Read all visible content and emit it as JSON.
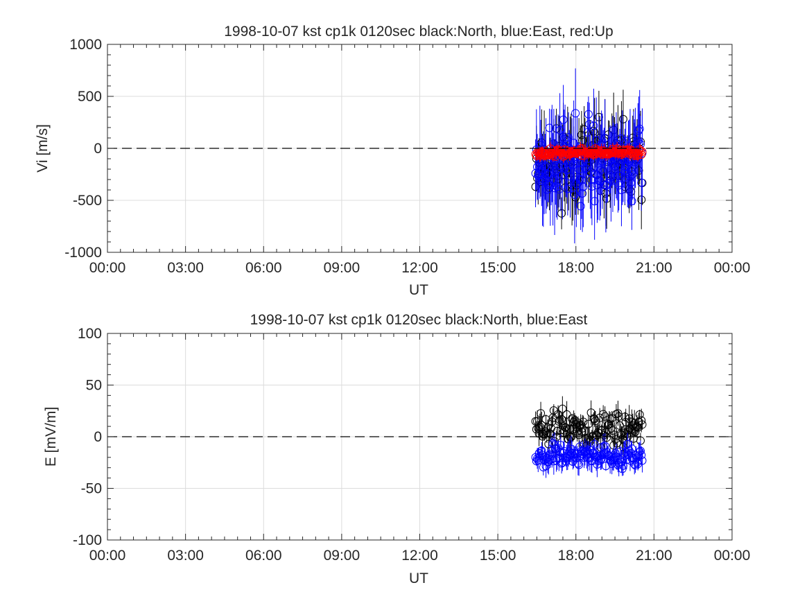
{
  "chart_data": [
    {
      "type": "scatter",
      "title": "1998-10-07 kst cp1k 0120sec black:North, blue:East, red:Up",
      "xlabel": "UT",
      "ylabel": "Vi [m/s]",
      "xticks": [
        "00:00",
        "03:00",
        "06:00",
        "09:00",
        "12:00",
        "15:00",
        "18:00",
        "21:00",
        "00:00"
      ],
      "xlim_hours": [
        0,
        24
      ],
      "ylim": [
        -1000,
        1000
      ],
      "yticks": [
        "1000",
        "500",
        "0",
        "-500",
        "-1000"
      ],
      "grid": true,
      "reference_line": 0,
      "data_window_hours": [
        16.45,
        20.55
      ],
      "sample_interval_sec": 120,
      "series": [
        {
          "name": "North",
          "color": "#000000",
          "marker": "open-circle",
          "error_bars": true,
          "center": -150,
          "spread": 520,
          "err": 260,
          "seed": 11
        },
        {
          "name": "East",
          "color": "#0000ff",
          "marker": "open-circle",
          "error_bars": true,
          "center": -120,
          "spread": 560,
          "err": 320,
          "seed": 23
        },
        {
          "name": "Up",
          "color": "#ff0000",
          "marker": "open-circle",
          "error_bars": true,
          "center": -40,
          "spread": 55,
          "err": 45,
          "seed": 37
        }
      ]
    },
    {
      "type": "scatter",
      "title": "1998-10-07 kst cp1k 0120sec black:North, blue:East",
      "xlabel": "UT",
      "ylabel": "E [mV/m]",
      "xticks": [
        "00:00",
        "03:00",
        "06:00",
        "09:00",
        "12:00",
        "15:00",
        "18:00",
        "21:00",
        "00:00"
      ],
      "xlim_hours": [
        0,
        24
      ],
      "ylim": [
        -100,
        100
      ],
      "yticks": [
        "100",
        "50",
        "0",
        "-50",
        "-100"
      ],
      "grid": true,
      "reference_line": 0,
      "data_window_hours": [
        16.45,
        20.55
      ],
      "sample_interval_sec": 120,
      "series": [
        {
          "name": "North",
          "color": "#000000",
          "marker": "open-circle",
          "error_bars": true,
          "center": 8,
          "spread": 26,
          "err": 9,
          "seed": 51
        },
        {
          "name": "East",
          "color": "#0000ff",
          "marker": "open-circle",
          "error_bars": true,
          "center": -18,
          "spread": 16,
          "err": 9,
          "seed": 67
        }
      ]
    }
  ]
}
